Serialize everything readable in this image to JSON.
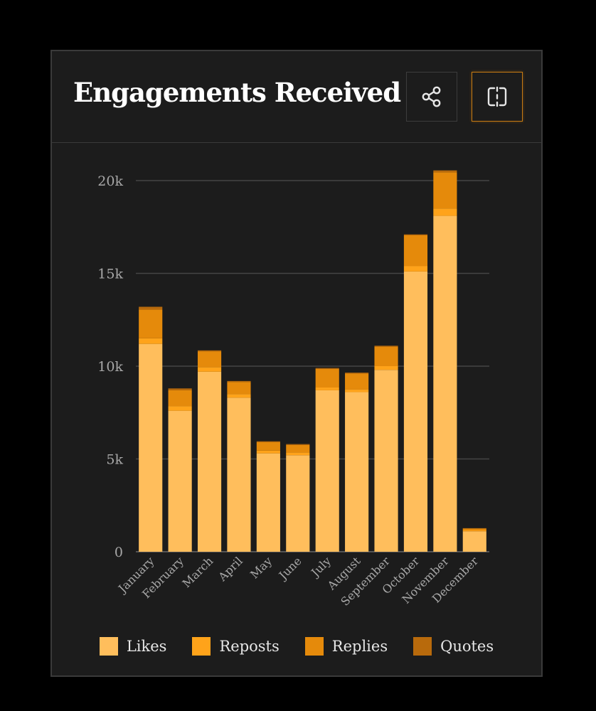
{
  "header": {
    "title": "Engagements Received",
    "share_icon": "share-icon",
    "split_icon": "split-view-icon"
  },
  "colors": {
    "likes": "#ffbe5c",
    "reposts": "#ffa31a",
    "replies": "#e58a0b",
    "quotes": "#b86a0c",
    "grid": "#444444",
    "axis_text": "#a8a8a8"
  },
  "legend": [
    {
      "label": "Likes",
      "color": "#ffbe5c"
    },
    {
      "label": "Reposts",
      "color": "#ffa31a"
    },
    {
      "label": "Replies",
      "color": "#e58a0b"
    },
    {
      "label": "Quotes",
      "color": "#b86a0c"
    }
  ],
  "chart_data": {
    "type": "bar",
    "stacked": true,
    "categories": [
      "January",
      "February",
      "March",
      "April",
      "May",
      "June",
      "July",
      "August",
      "September",
      "October",
      "November",
      "December"
    ],
    "series": [
      {
        "name": "Likes",
        "values": [
          11200,
          7600,
          9700,
          8300,
          5300,
          5200,
          8700,
          8600,
          9800,
          15100,
          18100,
          1100
        ]
      },
      {
        "name": "Reposts",
        "values": [
          300,
          250,
          250,
          200,
          150,
          150,
          150,
          150,
          200,
          300,
          400,
          50
        ]
      },
      {
        "name": "Replies",
        "values": [
          1550,
          850,
          850,
          650,
          450,
          400,
          1000,
          850,
          1050,
          1650,
          1950,
          100
        ]
      },
      {
        "name": "Quotes",
        "values": [
          150,
          100,
          50,
          50,
          50,
          50,
          50,
          50,
          50,
          50,
          100,
          20
        ]
      }
    ],
    "ylim": [
      0,
      20000
    ],
    "yticks": [
      0,
      5000,
      10000,
      15000,
      20000
    ],
    "ytick_labels": [
      "0",
      "5k",
      "10k",
      "15k",
      "20k"
    ],
    "grid": true,
    "legend_position": "bottom"
  }
}
